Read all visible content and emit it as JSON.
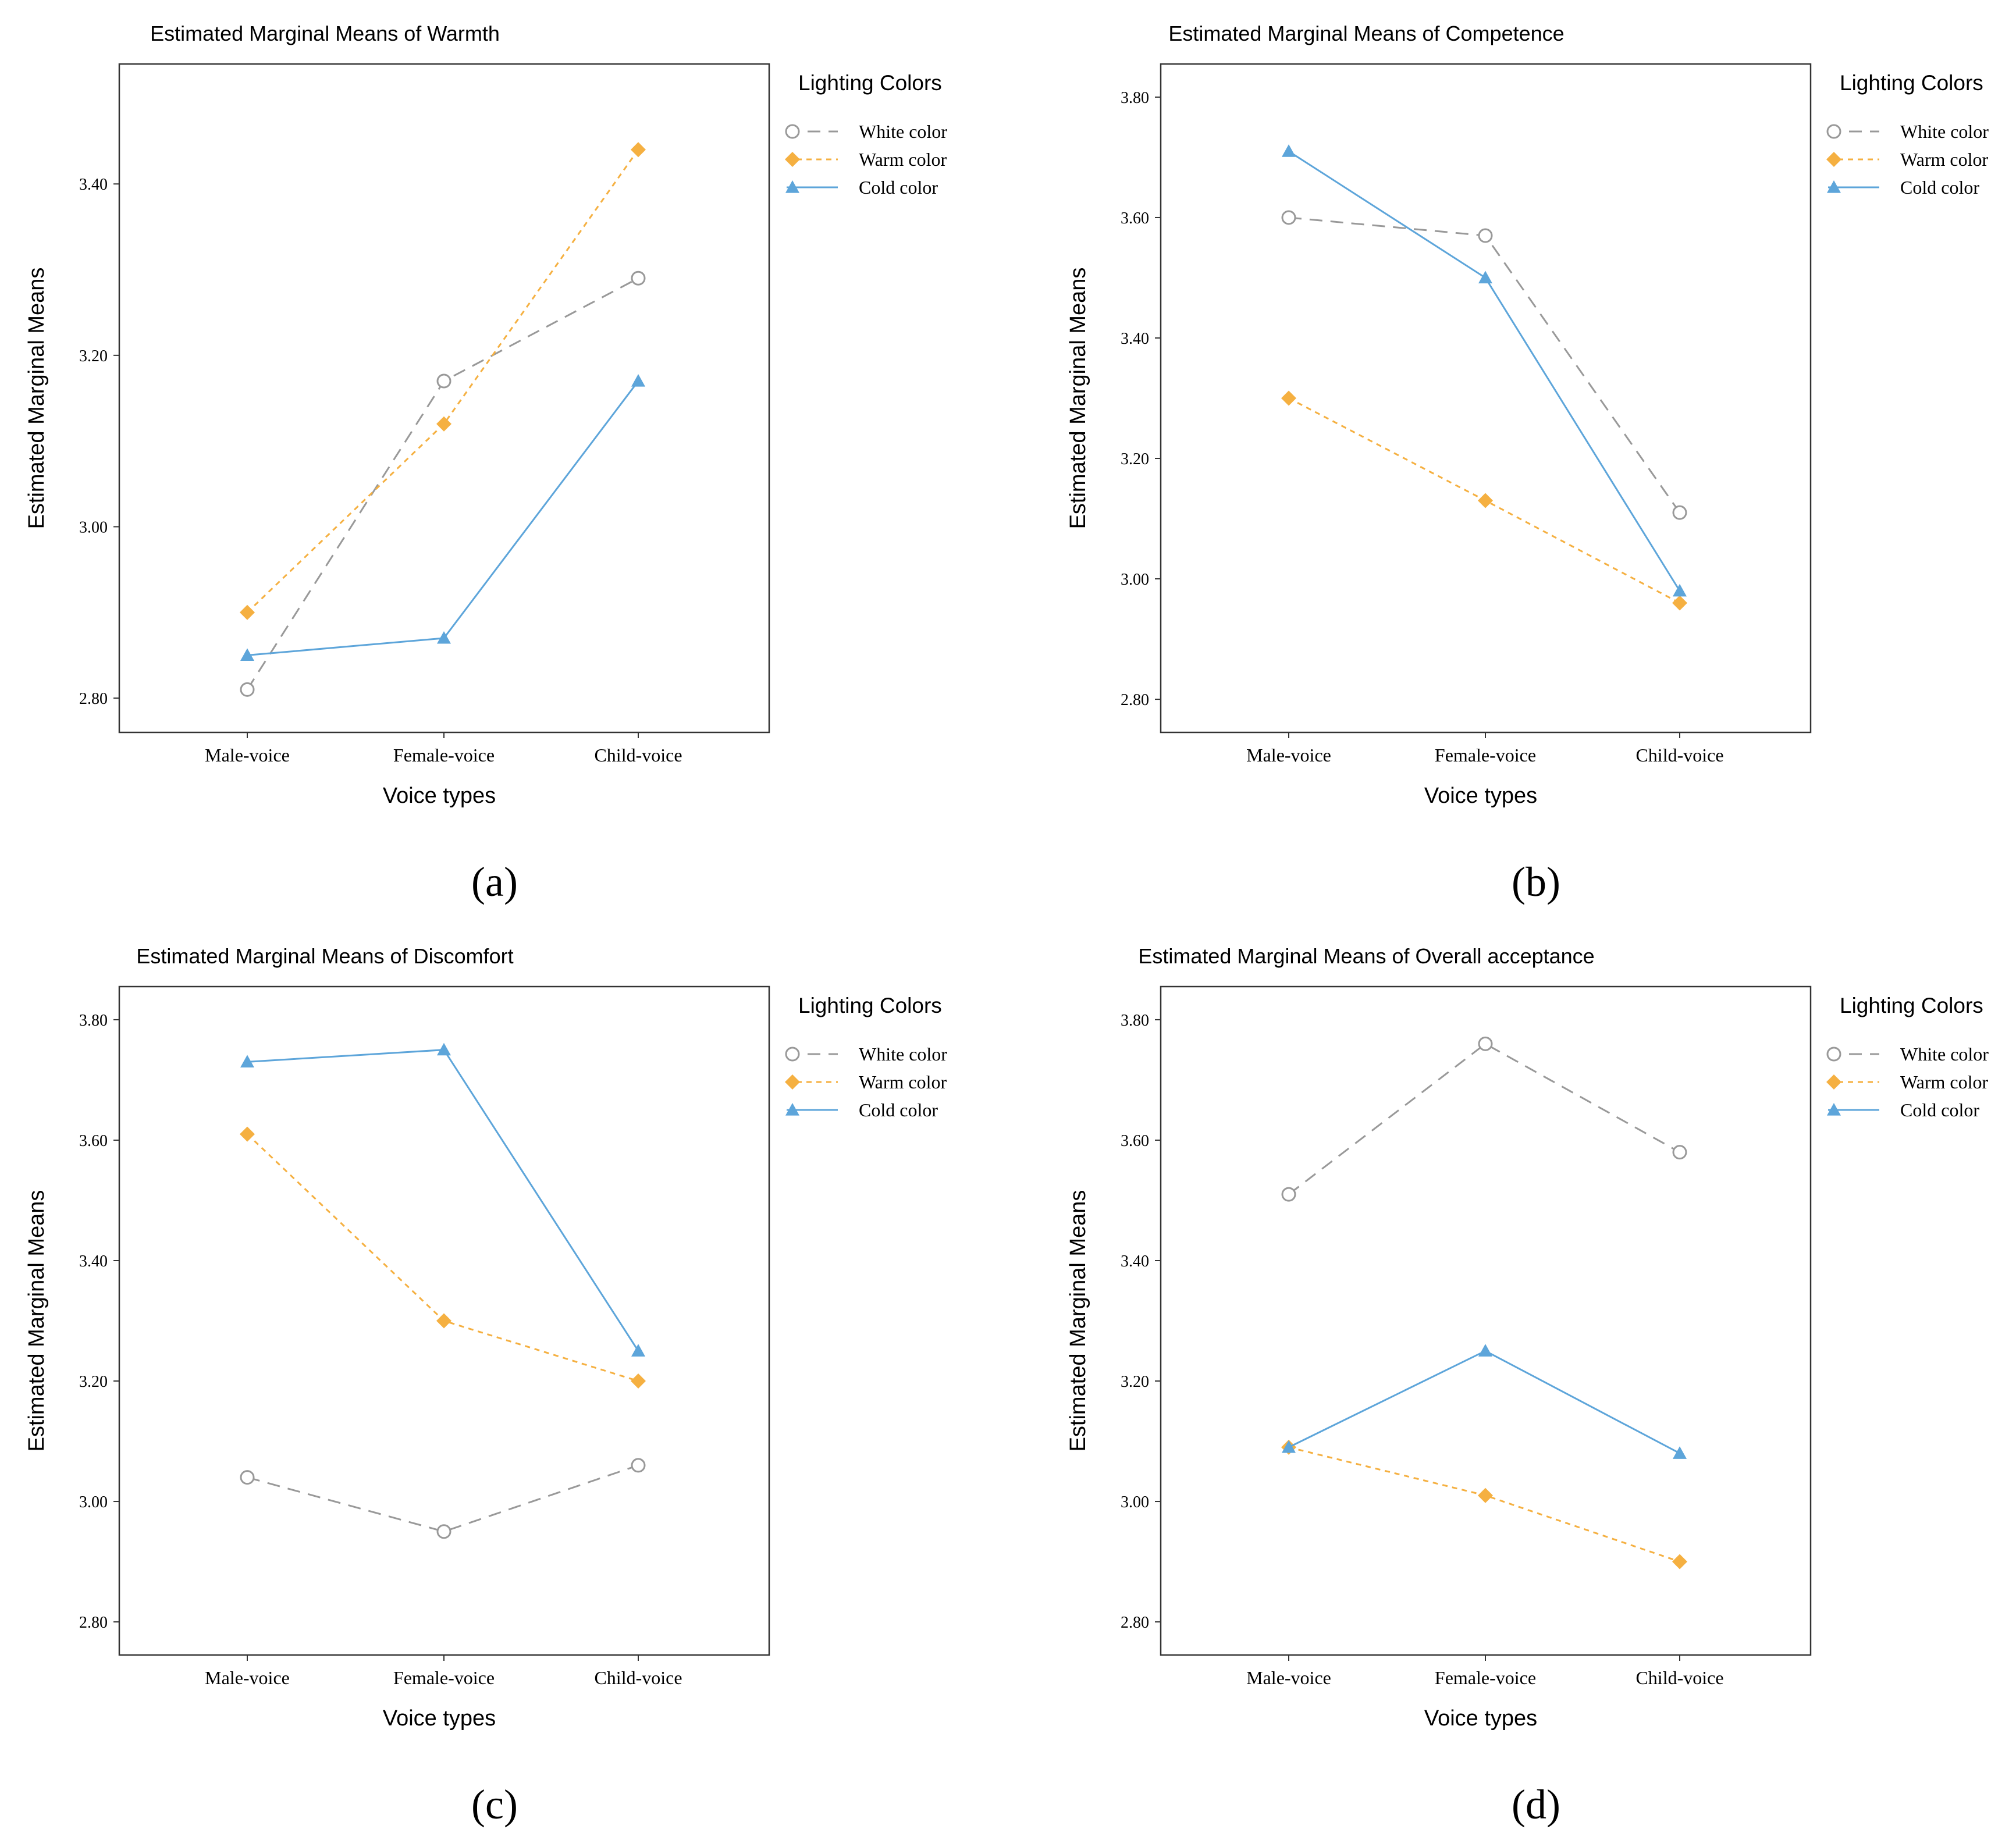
{
  "figure": {
    "legend_title": "Lighting Colors",
    "series_styles": [
      {
        "name": "White color",
        "color": "#999999",
        "marker": "circle-open",
        "dash": "long-dash"
      },
      {
        "name": "Warm color",
        "color": "#F5B041",
        "marker": "diamond",
        "dash": "short-dash"
      },
      {
        "name": "Cold color",
        "color": "#5DA5DA",
        "marker": "triangle",
        "dash": "solid"
      }
    ]
  },
  "chart_data": [
    {
      "type": "line",
      "panel_label": "(a)",
      "title": "Estimated Marginal Means of Warmth",
      "xlabel": "Voice types",
      "ylabel": "Estimated Marginal Means",
      "categories": [
        "Male-voice",
        "Female-voice",
        "Child-voice"
      ],
      "ylim": [
        2.76,
        3.54
      ],
      "yticks": [
        2.8,
        3.0,
        3.2,
        3.4
      ],
      "ytick_labels": [
        "2.80",
        "3.00",
        "3.20",
        "3.40"
      ],
      "legend_title": "Lighting Colors",
      "legend_position": "right",
      "series": [
        {
          "name": "White color",
          "values": [
            2.81,
            3.17,
            3.29
          ]
        },
        {
          "name": "Warm color",
          "values": [
            2.9,
            3.12,
            3.44
          ]
        },
        {
          "name": "Cold color",
          "values": [
            2.85,
            2.87,
            3.17
          ]
        }
      ]
    },
    {
      "type": "line",
      "panel_label": "(b)",
      "title": "Estimated Marginal Means of Competence",
      "xlabel": "Voice types",
      "ylabel": "Estimated Marginal Means",
      "categories": [
        "Male-voice",
        "Female-voice",
        "Child-voice"
      ],
      "ylim": [
        2.745,
        3.855
      ],
      "yticks": [
        2.8,
        3.0,
        3.2,
        3.4,
        3.6,
        3.8
      ],
      "ytick_labels": [
        "2.80",
        "3.00",
        "3.20",
        "3.40",
        "3.60",
        "3.80"
      ],
      "legend_title": "Lighting Colors",
      "legend_position": "right",
      "series": [
        {
          "name": "White color",
          "values": [
            3.6,
            3.57,
            3.11
          ]
        },
        {
          "name": "Warm color",
          "values": [
            3.3,
            3.13,
            2.96
          ]
        },
        {
          "name": "Cold color",
          "values": [
            3.71,
            3.5,
            2.98
          ]
        }
      ]
    },
    {
      "type": "line",
      "panel_label": "(c)",
      "title": "Estimated Marginal Means of Discomfort",
      "xlabel": "Voice types",
      "ylabel": "Estimated Marginal Means",
      "categories": [
        "Male-voice",
        "Female-voice",
        "Child-voice"
      ],
      "ylim": [
        2.745,
        3.855
      ],
      "yticks": [
        2.8,
        3.0,
        3.2,
        3.4,
        3.6,
        3.8
      ],
      "ytick_labels": [
        "2.80",
        "3.00",
        "3.20",
        "3.40",
        "3.60",
        "3.80"
      ],
      "legend_title": "Lighting Colors",
      "legend_position": "right",
      "series": [
        {
          "name": "White color",
          "values": [
            3.04,
            2.95,
            3.06
          ]
        },
        {
          "name": "Warm color",
          "values": [
            3.61,
            3.3,
            3.2
          ]
        },
        {
          "name": "Cold color",
          "values": [
            3.73,
            3.75,
            3.25
          ]
        }
      ]
    },
    {
      "type": "line",
      "panel_label": "(d)",
      "title": "Estimated Marginal Means of Overall acceptance",
      "xlabel": "Voice types",
      "ylabel": "Estimated Marginal Means",
      "categories": [
        "Male-voice",
        "Female-voice",
        "Child-voice"
      ],
      "ylim": [
        2.745,
        3.855
      ],
      "yticks": [
        2.8,
        3.0,
        3.2,
        3.4,
        3.6,
        3.8
      ],
      "ytick_labels": [
        "2.80",
        "3.00",
        "3.20",
        "3.40",
        "3.60",
        "3.80"
      ],
      "legend_title": "Lighting Colors",
      "legend_position": "right",
      "series": [
        {
          "name": "White color",
          "values": [
            3.51,
            3.76,
            3.58
          ]
        },
        {
          "name": "Warm color",
          "values": [
            3.09,
            3.01,
            2.9
          ]
        },
        {
          "name": "Cold color",
          "values": [
            3.09,
            3.25,
            3.08
          ]
        }
      ]
    }
  ]
}
